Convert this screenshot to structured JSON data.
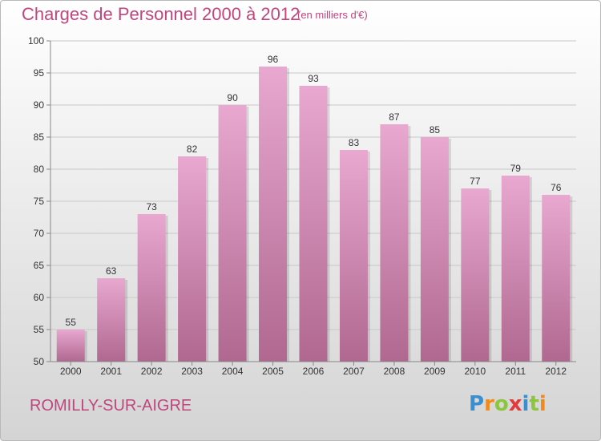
{
  "title": "Charges de Personnel 2000 à 2012",
  "subtitle": "(en milliers d'€)",
  "location": "ROMILLY-SUR-AIGRE",
  "logo": {
    "text": "Proxiti",
    "letters": [
      {
        "ch": "P",
        "color": "#3a8fd0"
      },
      {
        "ch": "r",
        "color": "#f08a1c"
      },
      {
        "ch": "o",
        "color": "#8cc63f"
      },
      {
        "ch": "x",
        "color": "#e23a3a"
      },
      {
        "ch": "i",
        "color": "#3a8fd0"
      },
      {
        "ch": "t",
        "color": "#8cc63f"
      },
      {
        "ch": "i",
        "color": "#f08a1c"
      }
    ]
  },
  "colors": {
    "accent": "#c0467e",
    "bar_top": "#e8a8d0",
    "bar_bottom": "#b06890",
    "axis": "#888888",
    "grid": "#c8c8c8",
    "label": "#333333"
  },
  "chart_data": {
    "type": "bar",
    "categories": [
      "2000",
      "2001",
      "2002",
      "2003",
      "2004",
      "2005",
      "2006",
      "2007",
      "2008",
      "2009",
      "2010",
      "2011",
      "2012"
    ],
    "values": [
      55,
      63,
      73,
      82,
      90,
      96,
      93,
      83,
      87,
      85,
      77,
      79,
      76
    ],
    "ylim": [
      50,
      100
    ],
    "yticks": [
      50,
      55,
      60,
      65,
      70,
      75,
      80,
      85,
      90,
      95,
      100
    ],
    "grid": true,
    "legend": "none"
  }
}
